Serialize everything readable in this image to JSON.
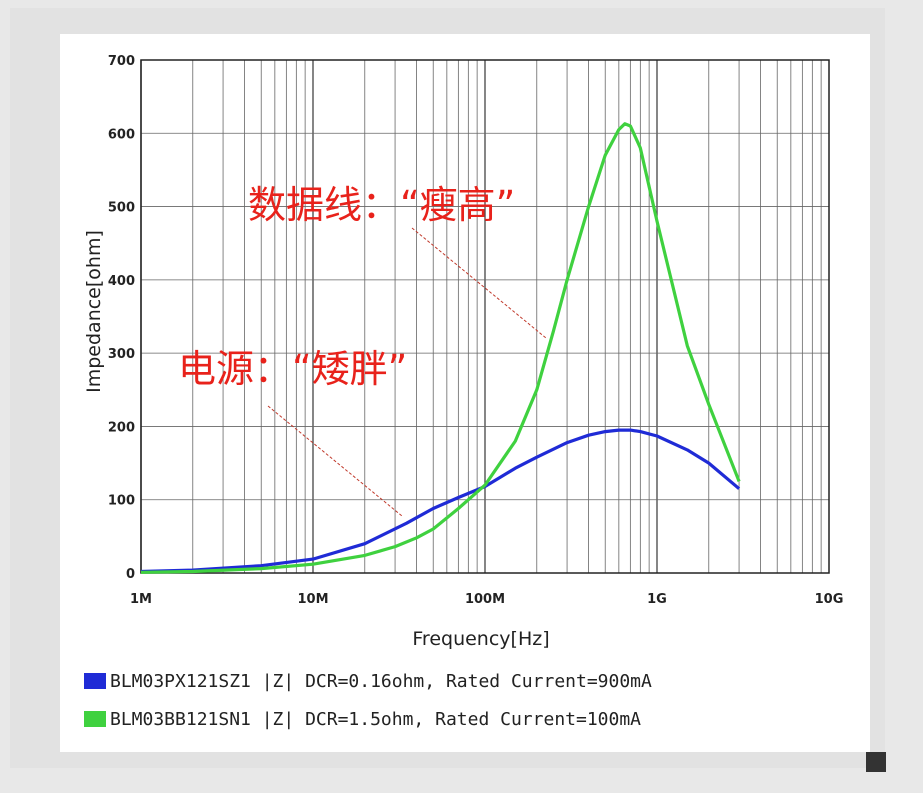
{
  "chart_data": {
    "type": "line",
    "xlabel": "Frequency[Hz]",
    "ylabel": "Impedance[ohm]",
    "xscale": "log",
    "xlim": [
      1000000,
      10000000000
    ],
    "ylim": [
      0,
      700
    ],
    "grid": true,
    "x_ticks": [
      {
        "value": 1000000,
        "label": "1M"
      },
      {
        "value": 10000000,
        "label": "10M"
      },
      {
        "value": 100000000,
        "label": "100M"
      },
      {
        "value": 1000000000,
        "label": "1G"
      },
      {
        "value": 10000000000,
        "label": "10G"
      }
    ],
    "y_ticks": [
      {
        "value": 0,
        "label": "0"
      },
      {
        "value": 100,
        "label": "100"
      },
      {
        "value": 200,
        "label": "200"
      },
      {
        "value": 300,
        "label": "300"
      },
      {
        "value": 400,
        "label": "400"
      },
      {
        "value": 500,
        "label": "500"
      },
      {
        "value": 600,
        "label": "600"
      },
      {
        "value": 700,
        "label": "700"
      }
    ],
    "legend_position": "bottom",
    "series": [
      {
        "name": "BLM03PX121SZ1 |Z| DCR=0.16ohm, Rated Current=900mA",
        "color": "#1f2bd6",
        "x": [
          1000000,
          2000000,
          5000000,
          10000000,
          20000000,
          35000000,
          50000000,
          70000000,
          100000000,
          150000000,
          200000000,
          300000000,
          400000000,
          500000000,
          600000000,
          700000000,
          800000000,
          1000000000,
          1500000000,
          2000000000,
          3000000000
        ],
        "y": [
          2,
          4,
          10,
          19,
          40,
          68,
          88,
          103,
          118,
          143,
          158,
          178,
          188,
          193,
          195,
          195,
          193,
          187,
          168,
          150,
          115
        ]
      },
      {
        "name": "BLM03BB121SN1 |Z| DCR=1.5ohm, Rated Current=100mA",
        "color": "#3fd13f",
        "x": [
          1000000,
          2000000,
          5000000,
          10000000,
          20000000,
          30000000,
          40000000,
          50000000,
          70000000,
          100000000,
          150000000,
          200000000,
          250000000,
          300000000,
          400000000,
          500000000,
          600000000,
          650000000,
          700000000,
          800000000,
          1000000000,
          1500000000,
          2000000000,
          3000000000
        ],
        "y": [
          1,
          2,
          6,
          12,
          24,
          36,
          48,
          60,
          88,
          120,
          180,
          250,
          330,
          400,
          500,
          570,
          605,
          613,
          610,
          580,
          480,
          310,
          230,
          125
        ]
      }
    ],
    "annotations": [
      {
        "text": "数据线：“瘦高”"
      },
      {
        "text": "电源：“矮胖”"
      }
    ]
  }
}
